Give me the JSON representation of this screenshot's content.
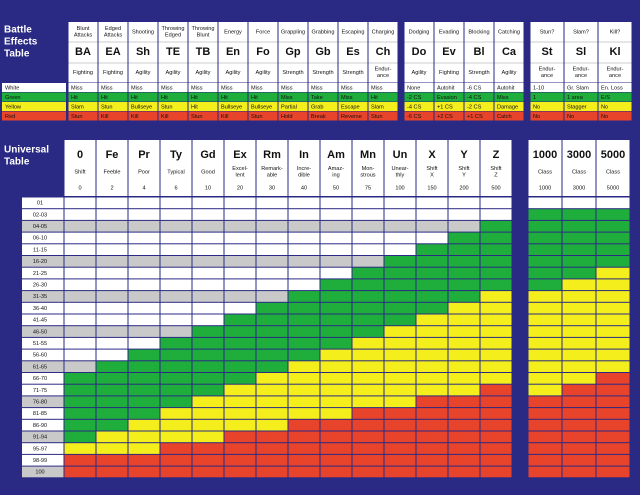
{
  "battle": {
    "title": [
      "Battle",
      "Effects",
      "Table"
    ],
    "columns": [
      {
        "name": [
          "Blunt",
          "Attacks"
        ],
        "abbr": "BA",
        "ability": [
          "Fighting"
        ]
      },
      {
        "name": [
          "Edged",
          "Attacks"
        ],
        "abbr": "EA",
        "ability": [
          "Fighting"
        ]
      },
      {
        "name": [
          "Shooting"
        ],
        "abbr": "Sh",
        "ability": [
          "Agility"
        ]
      },
      {
        "name": [
          "Throwing",
          "Edged"
        ],
        "abbr": "TE",
        "ability": [
          "Agility"
        ]
      },
      {
        "name": [
          "Throwing",
          "Blunt"
        ],
        "abbr": "TB",
        "ability": [
          "Agility"
        ]
      },
      {
        "name": [
          "Energy"
        ],
        "abbr": "En",
        "ability": [
          "Agility"
        ]
      },
      {
        "name": [
          "Force"
        ],
        "abbr": "Fo",
        "ability": [
          "Agility"
        ]
      },
      {
        "name": [
          "Grappling"
        ],
        "abbr": "Gp",
        "ability": [
          "Strength"
        ]
      },
      {
        "name": [
          "Grabbing"
        ],
        "abbr": "Gb",
        "ability": [
          "Strength"
        ]
      },
      {
        "name": [
          "Escaping"
        ],
        "abbr": "Es",
        "ability": [
          "Strength"
        ]
      },
      {
        "name": [
          "Charging"
        ],
        "abbr": "Ch",
        "ability": [
          "Endur-",
          "ance"
        ]
      },
      {
        "name": [
          "Dodging"
        ],
        "abbr": "Do",
        "ability": [
          "Agility"
        ]
      },
      {
        "name": [
          "Evading"
        ],
        "abbr": "Ev",
        "ability": [
          "Fighting"
        ]
      },
      {
        "name": [
          "Blocking"
        ],
        "abbr": "Bl",
        "ability": [
          "Strength"
        ]
      },
      {
        "name": [
          "Catching"
        ],
        "abbr": "Ca",
        "ability": [
          "Agility"
        ]
      },
      {
        "name": [
          "Stun?"
        ],
        "abbr": "St",
        "ability": [
          "Endur-",
          "ance"
        ]
      },
      {
        "name": [
          "Slam?"
        ],
        "abbr": "Sl",
        "ability": [
          "Endur-",
          "ance"
        ]
      },
      {
        "name": [
          "Kill?"
        ],
        "abbr": "Kl",
        "ability": [
          "Endur-",
          "ance"
        ]
      }
    ],
    "rows": [
      {
        "label": "White",
        "cells": [
          "Miss",
          "Miss",
          "Miss",
          "Miss",
          "Miss",
          "Miss",
          "Miss",
          "Miss",
          "Miss",
          "Miss",
          "Miss",
          "None",
          "Autohit",
          "-6 CS",
          "Autohit",
          "1-10",
          "Gr. Slam",
          "En. Loss"
        ]
      },
      {
        "label": "Green",
        "cells": [
          "Hit",
          "Hit",
          "Hit",
          "Hit",
          "Hit",
          "Hit",
          "Hit",
          "Miss",
          "Take",
          "Miss",
          "Hit",
          "-2 CS",
          "Evasion",
          "-4 CS",
          "Miss",
          "1",
          "1 area",
          "E/S"
        ]
      },
      {
        "label": "Yellow",
        "cells": [
          "Slam",
          "Stun",
          "Bullseye",
          "Stun",
          "Hit",
          "Bullseye",
          "Bullseye",
          "Partial",
          "Grab",
          "Escape",
          "Slam",
          "-4 CS",
          "+1 CS",
          "-2 CS",
          "Damage",
          "No",
          "Stagger",
          "No"
        ]
      },
      {
        "label": "Red",
        "cells": [
          "Stun",
          "Kill",
          "Kill",
          "Kill",
          "Stun",
          "Kill",
          "Stun",
          "Hold",
          "Break",
          "Reverse",
          "Stun",
          "-6 CS",
          "+2 CS",
          "+1 CS",
          "Catch",
          "No",
          "No",
          "No"
        ]
      }
    ]
  },
  "universal": {
    "title": [
      "Universal",
      "Table"
    ],
    "columns": [
      {
        "abbr": "0",
        "name": [
          "Shift"
        ],
        "value": 0,
        "bands": [
          15,
          21,
          22
        ]
      },
      {
        "abbr": "Fe",
        "name": [
          "Feeble"
        ],
        "value": 2,
        "bands": [
          14,
          20,
          22
        ]
      },
      {
        "abbr": "Pr",
        "name": [
          "Poor"
        ],
        "value": 4,
        "bands": [
          13,
          19,
          22
        ]
      },
      {
        "abbr": "Ty",
        "name": [
          "Typical"
        ],
        "value": 6,
        "bands": [
          12,
          18,
          21
        ]
      },
      {
        "abbr": "Gd",
        "name": [
          "Good"
        ],
        "value": 10,
        "bands": [
          11,
          17,
          21
        ]
      },
      {
        "abbr": "Ex",
        "name": [
          "Excel-",
          "lent"
        ],
        "value": 20,
        "bands": [
          10,
          16,
          20
        ]
      },
      {
        "abbr": "Rm",
        "name": [
          "Remark-",
          "able"
        ],
        "value": 30,
        "bands": [
          9,
          15,
          20
        ]
      },
      {
        "abbr": "In",
        "name": [
          "Incre-",
          "dible"
        ],
        "value": 40,
        "bands": [
          8,
          14,
          19
        ]
      },
      {
        "abbr": "Am",
        "name": [
          "Amaz-",
          "ing"
        ],
        "value": 50,
        "bands": [
          7,
          13,
          19
        ]
      },
      {
        "abbr": "Mn",
        "name": [
          "Mon-",
          "strous"
        ],
        "value": 75,
        "bands": [
          6,
          12,
          18
        ]
      },
      {
        "abbr": "Un",
        "name": [
          "Unear-",
          "thly"
        ],
        "value": 100,
        "bands": [
          5,
          11,
          18
        ]
      },
      {
        "abbr": "X",
        "name": [
          "Shift",
          "X"
        ],
        "value": 150,
        "bands": [
          4,
          10,
          17
        ]
      },
      {
        "abbr": "Y",
        "name": [
          "Shift",
          "Y"
        ],
        "value": 200,
        "bands": [
          3,
          9,
          17
        ]
      },
      {
        "abbr": "Z",
        "name": [
          "Shift",
          "Z"
        ],
        "value": 500,
        "bands": [
          2,
          8,
          16
        ]
      },
      {
        "abbr": "1000",
        "name": [
          "Class"
        ],
        "value": 1000,
        "bands": [
          1,
          8,
          17
        ]
      },
      {
        "abbr": "3000",
        "name": [
          "Class"
        ],
        "value": 3000,
        "bands": [
          1,
          7,
          16
        ]
      },
      {
        "abbr": "5000",
        "name": [
          "Class"
        ],
        "value": 5000,
        "bands": [
          1,
          6,
          15
        ]
      }
    ],
    "rows": [
      "01",
      "02-03",
      "04-05",
      "06-10",
      "11-15",
      "16-20",
      "21-25",
      "26-30",
      "31-35",
      "36-40",
      "41-45",
      "46-50",
      "51-55",
      "56-60",
      "61-65",
      "66-70",
      "71-75",
      "76-80",
      "81-85",
      "86-90",
      "91-94",
      "95-97",
      "98-99",
      "100"
    ]
  }
}
